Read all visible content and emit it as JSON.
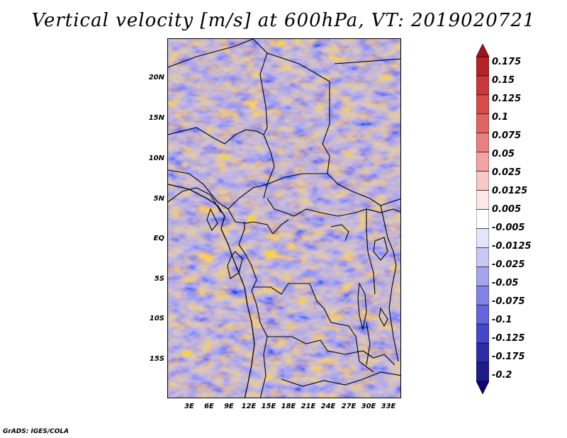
{
  "title": "Vertical velocity [m/s] at 600hPa, VT: 2019020721",
  "map": {
    "variable": "vertical velocity",
    "level": "600hPa",
    "valid_time": "2019020721",
    "lat_labels": [
      "20N",
      "15N",
      "10N",
      "5N",
      "EQ",
      "5S",
      "10S",
      "15S"
    ],
    "lat_values": [
      20,
      15,
      10,
      5,
      0,
      -5,
      -10,
      -15
    ],
    "lon_labels": [
      "3E",
      "6E",
      "9E",
      "12E",
      "15E",
      "18E",
      "21E",
      "24E",
      "27E",
      "30E",
      "33E"
    ],
    "lon_values": [
      3,
      6,
      9,
      12,
      15,
      18,
      21,
      24,
      27,
      30,
      33
    ],
    "lon_range": [
      0,
      34.5
    ],
    "lat_range": [
      -20,
      24.5
    ]
  },
  "colorbar": {
    "labels": [
      "0.175",
      "0.15",
      "0.125",
      "0.1",
      "0.075",
      "0.05",
      "0.025",
      "0.0125",
      "0.005",
      "-0.005",
      "-0.0125",
      "-0.025",
      "-0.05",
      "-0.075",
      "-0.1",
      "-0.125",
      "-0.175",
      "-0.2"
    ],
    "colors": [
      "#a0141e",
      "#b42328",
      "#c8373c",
      "#d74b4b",
      "#e26462",
      "#eb8080",
      "#f3a3a3",
      "#f8c8c8",
      "#fce6e6",
      "#ffffff",
      "#e4e4fa",
      "#c8c8f5",
      "#a5a5ee",
      "#8282e6",
      "#6464dc",
      "#4646c8",
      "#2d2daa",
      "#1c1c8c",
      "#140078"
    ]
  },
  "footer": "GrADS: IGES/COLA"
}
